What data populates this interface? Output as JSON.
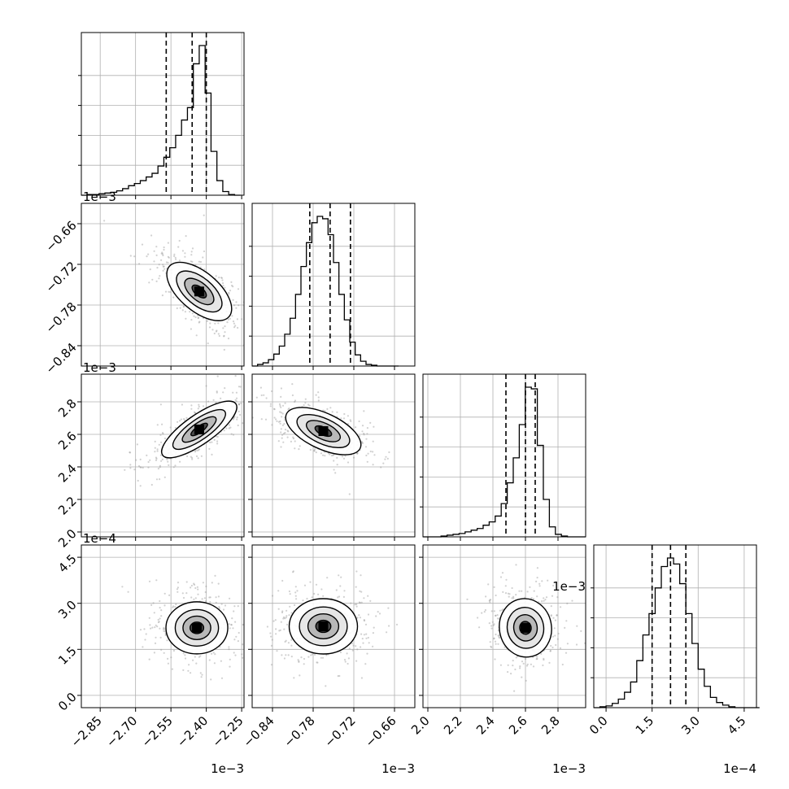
{
  "chart_data": {
    "type": "corner",
    "parameters": [
      {
        "range": [
          -2.93,
          -2.24
        ],
        "ticks": [
          -2.85,
          -2.7,
          -2.55,
          -2.4,
          -2.25
        ],
        "tick_labels": [
          "−2.85",
          "−2.70",
          "−2.55",
          "−2.40",
          "−2.25"
        ],
        "offset": "1e−3",
        "quantiles": [
          -2.57,
          -2.46,
          -2.4
        ]
      },
      {
        "range": [
          -0.87,
          -0.63
        ],
        "ticks": [
          -0.84,
          -0.78,
          -0.72,
          -0.66
        ],
        "tick_labels": [
          "−0.84",
          "−0.78",
          "−0.72",
          "−0.66"
        ],
        "offset": "1e−3",
        "quantiles": [
          -0.785,
          -0.755,
          -0.725
        ]
      },
      {
        "range": [
          1.97,
          2.97
        ],
        "ticks": [
          2.0,
          2.2,
          2.4,
          2.6,
          2.8
        ],
        "tick_labels": [
          "2.0",
          "2.2",
          "2.4",
          "2.6",
          "2.8"
        ],
        "offset": "1e−3",
        "quantiles": [
          2.48,
          2.6,
          2.66
        ]
      },
      {
        "range": [
          -0.4,
          4.9
        ],
        "ticks": [
          0.0,
          1.5,
          3.0,
          4.5
        ],
        "tick_labels": [
          "0.0",
          "1.5",
          "3.0",
          "4.5"
        ],
        "offset": "1e−4",
        "quantiles": [
          1.5,
          2.1,
          2.6
        ]
      }
    ],
    "marginals": [
      {
        "x": [
          -2.93,
          -2.905,
          -2.88,
          -2.855,
          -2.83,
          -2.805,
          -2.78,
          -2.755,
          -2.73,
          -2.705,
          -2.68,
          -2.655,
          -2.63,
          -2.605,
          -2.58,
          -2.555,
          -2.53,
          -2.505,
          -2.48,
          -2.455,
          -2.43,
          -2.405,
          -2.38,
          -2.355,
          -2.33,
          -2.305,
          -2.28
        ],
        "counts": [
          0,
          1,
          1,
          2,
          3,
          4,
          6,
          9,
          13,
          16,
          20,
          25,
          30,
          40,
          52,
          65,
          82,
          103,
          120,
          180,
          205,
          140,
          60,
          20,
          5,
          1,
          0
        ]
      },
      {
        "x": [
          -0.87,
          -0.862,
          -0.854,
          -0.846,
          -0.838,
          -0.83,
          -0.822,
          -0.814,
          -0.806,
          -0.798,
          -0.79,
          -0.782,
          -0.774,
          -0.766,
          -0.758,
          -0.75,
          -0.742,
          -0.734,
          -0.726,
          -0.718,
          -0.71,
          -0.702,
          -0.694,
          -0.686,
          -0.678,
          -0.67,
          -0.662
        ],
        "counts": [
          0,
          2,
          4,
          8,
          15,
          25,
          40,
          60,
          90,
          125,
          155,
          180,
          188,
          185,
          165,
          130,
          90,
          58,
          30,
          14,
          6,
          2,
          1,
          0,
          0,
          0,
          0
        ]
      },
      {
        "x": [
          1.97,
          2.007,
          2.044,
          2.081,
          2.118,
          2.155,
          2.192,
          2.229,
          2.266,
          2.303,
          2.34,
          2.377,
          2.414,
          2.451,
          2.488,
          2.525,
          2.562,
          2.599,
          2.636,
          2.673,
          2.71,
          2.747,
          2.784,
          2.821,
          2.858,
          2.895,
          2.932
        ],
        "counts": [
          0,
          0,
          0,
          1,
          2,
          3,
          4,
          6,
          8,
          10,
          14,
          18,
          25,
          40,
          65,
          95,
          135,
          180,
          178,
          110,
          45,
          12,
          3,
          1,
          0,
          0,
          0
        ]
      },
      {
        "x": [
          -0.4,
          -0.2,
          0.0,
          0.2,
          0.4,
          0.6,
          0.8,
          1.0,
          1.2,
          1.4,
          1.6,
          1.8,
          2.0,
          2.2,
          2.4,
          2.6,
          2.8,
          3.0,
          3.2,
          3.4,
          3.6,
          3.8,
          4.0,
          4.2,
          4.4,
          4.6,
          4.8
        ],
        "counts": [
          0,
          1,
          2,
          5,
          10,
          18,
          30,
          55,
          85,
          110,
          140,
          165,
          175,
          168,
          145,
          110,
          75,
          45,
          25,
          12,
          6,
          3,
          1,
          0,
          0,
          0,
          0
        ]
      }
    ],
    "joint_peaks": [
      {
        "row": 1,
        "col": 0,
        "center": [
          -2.43,
          -0.76
        ]
      },
      {
        "row": 2,
        "col": 0,
        "center": [
          -2.43,
          2.63
        ]
      },
      {
        "row": 2,
        "col": 1,
        "center": [
          -0.765,
          2.62
        ]
      },
      {
        "row": 3,
        "col": 0,
        "center": [
          -2.44,
          2.2
        ]
      },
      {
        "row": 3,
        "col": 1,
        "center": [
          -0.765,
          2.25
        ]
      },
      {
        "row": 3,
        "col": 2,
        "center": [
          2.6,
          2.2
        ]
      }
    ],
    "grid": true
  }
}
